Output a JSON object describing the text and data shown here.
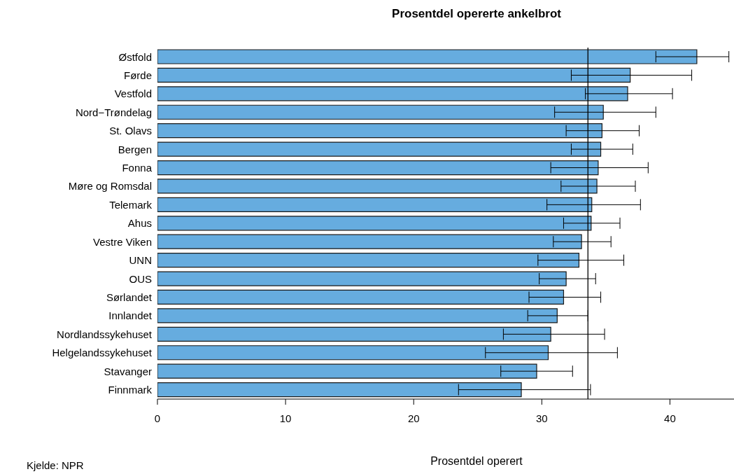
{
  "chart_data": {
    "type": "bar",
    "orientation": "horizontal",
    "title": "Prosentdel opererte ankelbrot",
    "xlabel": "Prosentdel operert",
    "annotations": [
      "Kjelde: NPR"
    ],
    "categories": [
      "Østfold",
      "Førde",
      "Vestfold",
      "Nord−Trøndelag",
      "St. Olavs",
      "Bergen",
      "Fonna",
      "Møre og Romsdal",
      "Telemark",
      "Ahus",
      "Vestre Viken",
      "UNN",
      "OUS",
      "Sørlandet",
      "Innlandet",
      "Nordlandssykehuset",
      "Helgelandssykehuset",
      "Stavanger",
      "Finnmark"
    ],
    "values": [
      42.1,
      36.9,
      36.7,
      34.8,
      34.7,
      34.6,
      34.4,
      34.3,
      33.9,
      33.85,
      33.1,
      32.9,
      31.9,
      31.7,
      31.2,
      30.7,
      30.5,
      29.6,
      28.4
    ],
    "errors": [
      [
        38.9,
        44.6
      ],
      [
        32.3,
        41.7
      ],
      [
        33.4,
        40.2
      ],
      [
        31.0,
        38.9
      ],
      [
        31.9,
        37.6
      ],
      [
        32.3,
        37.1
      ],
      [
        30.7,
        38.3
      ],
      [
        31.5,
        37.3
      ],
      [
        30.4,
        37.7
      ],
      [
        31.7,
        36.1
      ],
      [
        30.9,
        35.4
      ],
      [
        29.7,
        36.4
      ],
      [
        29.8,
        34.2
      ],
      [
        29.0,
        34.6
      ],
      [
        28.9,
        33.6
      ],
      [
        27.0,
        34.9
      ],
      [
        25.6,
        35.9
      ],
      [
        26.8,
        32.4
      ],
      [
        23.5,
        33.8
      ]
    ],
    "color": "#66acdf",
    "xlim": [
      0,
      45
    ],
    "xticks": [
      0,
      10,
      20,
      30,
      40
    ],
    "ref_lines": [
      {
        "axis": "x",
        "value": 33.6,
        "color": "#000000"
      }
    ]
  }
}
